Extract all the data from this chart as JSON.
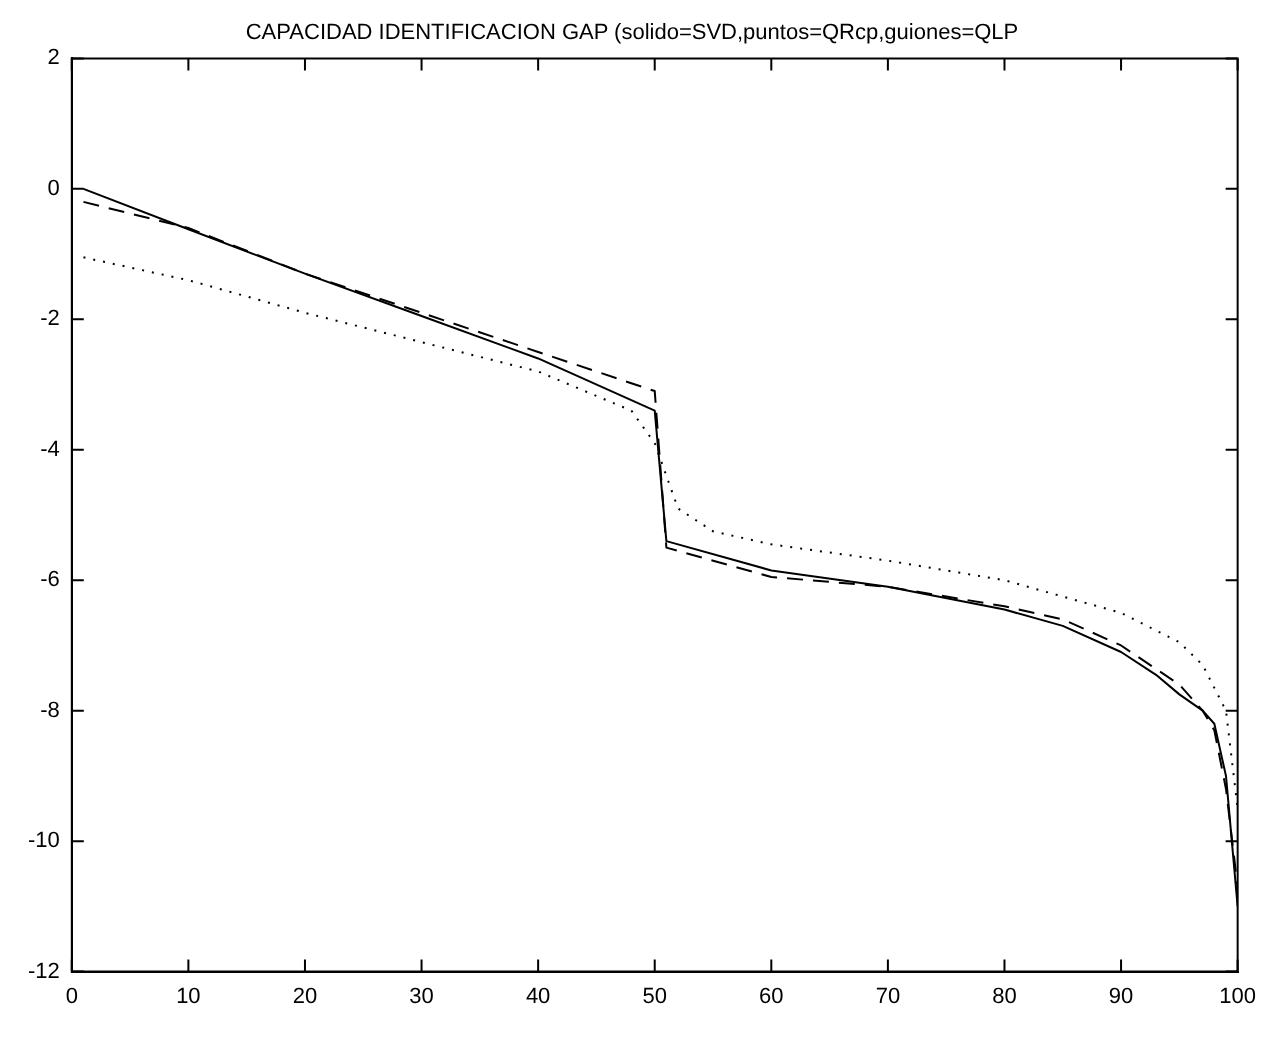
{
  "chart_data": {
    "type": "line",
    "title": "CAPACIDAD IDENTIFICACION GAP (solido=SVD,puntos=QRcp,guiones=QLP",
    "xlim": [
      0,
      100
    ],
    "ylim": [
      -12,
      2
    ],
    "xticks": [
      0,
      10,
      20,
      30,
      40,
      50,
      60,
      70,
      80,
      90,
      100
    ],
    "yticks": [
      -12,
      -10,
      -8,
      -6,
      -4,
      -2,
      0,
      2
    ],
    "grid": false,
    "legend": false,
    "marker": "none",
    "series": [
      {
        "color": "#000000",
        "line_style": "solid",
        "x": [
          1,
          10,
          20,
          30,
          40,
          50,
          51,
          60,
          70,
          80,
          85,
          90,
          93,
          95,
          97,
          98,
          99,
          100
        ],
        "values": [
          0,
          -0.62,
          -1.3,
          -1.95,
          -2.6,
          -3.4,
          -5.4,
          -5.85,
          -6.1,
          -6.45,
          -6.7,
          -7.1,
          -7.45,
          -7.75,
          -8.0,
          -8.2,
          -9.0,
          -11.0
        ]
      },
      {
        "color": "#000000",
        "line_style": "dotted",
        "x": [
          1,
          10,
          20,
          30,
          40,
          48,
          50,
          52,
          55,
          60,
          70,
          80,
          90,
          95,
          97,
          99,
          100
        ],
        "values": [
          -1.05,
          -1.4,
          -1.9,
          -2.35,
          -2.8,
          -3.4,
          -3.9,
          -4.9,
          -5.25,
          -5.45,
          -5.7,
          -6.0,
          -6.5,
          -6.95,
          -7.3,
          -8.0,
          -9.5
        ]
      },
      {
        "color": "#000000",
        "line_style": "dashed",
        "x": [
          1,
          10,
          20,
          30,
          40,
          50,
          51,
          60,
          70,
          80,
          85,
          90,
          95,
          97,
          98,
          99,
          100
        ],
        "values": [
          -0.2,
          -0.6,
          -1.3,
          -1.9,
          -2.5,
          -3.1,
          -5.5,
          -5.95,
          -6.1,
          -6.4,
          -6.6,
          -7.0,
          -7.6,
          -8.0,
          -8.3,
          -9.2,
          -10.7
        ]
      }
    ]
  }
}
